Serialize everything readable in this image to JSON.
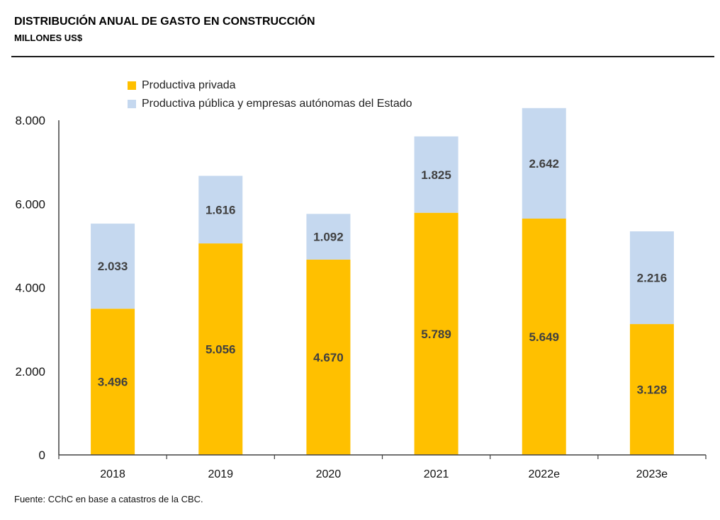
{
  "header": {
    "title": "DISTRIBUCIÓN ANUAL DE GASTO EN CONSTRUCCIÓN",
    "subtitle": "MILLONES US$"
  },
  "footer": {
    "source": "Fuente: CChC en base a catastros de la CBC."
  },
  "chart_data": {
    "type": "bar",
    "stacked": true,
    "title": "DISTRIBUCIÓN ANUAL DE GASTO EN CONSTRUCCIÓN",
    "subtitle": "MILLONES US$",
    "xlabel": "",
    "ylabel": "",
    "categories": [
      "2018",
      "2019",
      "2020",
      "2021",
      "2022e",
      "2023e"
    ],
    "series": [
      {
        "name": "Productiva privada",
        "color": "#FFC000",
        "values": [
          3496,
          5056,
          4670,
          5789,
          5649,
          3128
        ],
        "labels": [
          "3.496",
          "5.056",
          "4.670",
          "5.789",
          "5.649",
          "3.128"
        ]
      },
      {
        "name": "Productiva pública y empresas autónomas del Estado",
        "color": "#C5D8EF",
        "values": [
          2033,
          1616,
          1092,
          1825,
          2642,
          2216
        ],
        "labels": [
          "2.033",
          "1.616",
          "1.092",
          "1.825",
          "2.642",
          "2.216"
        ]
      }
    ],
    "ylim": [
      0,
      8000
    ],
    "yticks": [
      0,
      2000,
      4000,
      6000,
      8000
    ],
    "ytick_labels": [
      "0",
      "2.000",
      "4.000",
      "6.000",
      "8.000"
    ],
    "grid": false,
    "legend_position": "top-left",
    "label_color": "#404040",
    "axis_color": "#404040"
  }
}
